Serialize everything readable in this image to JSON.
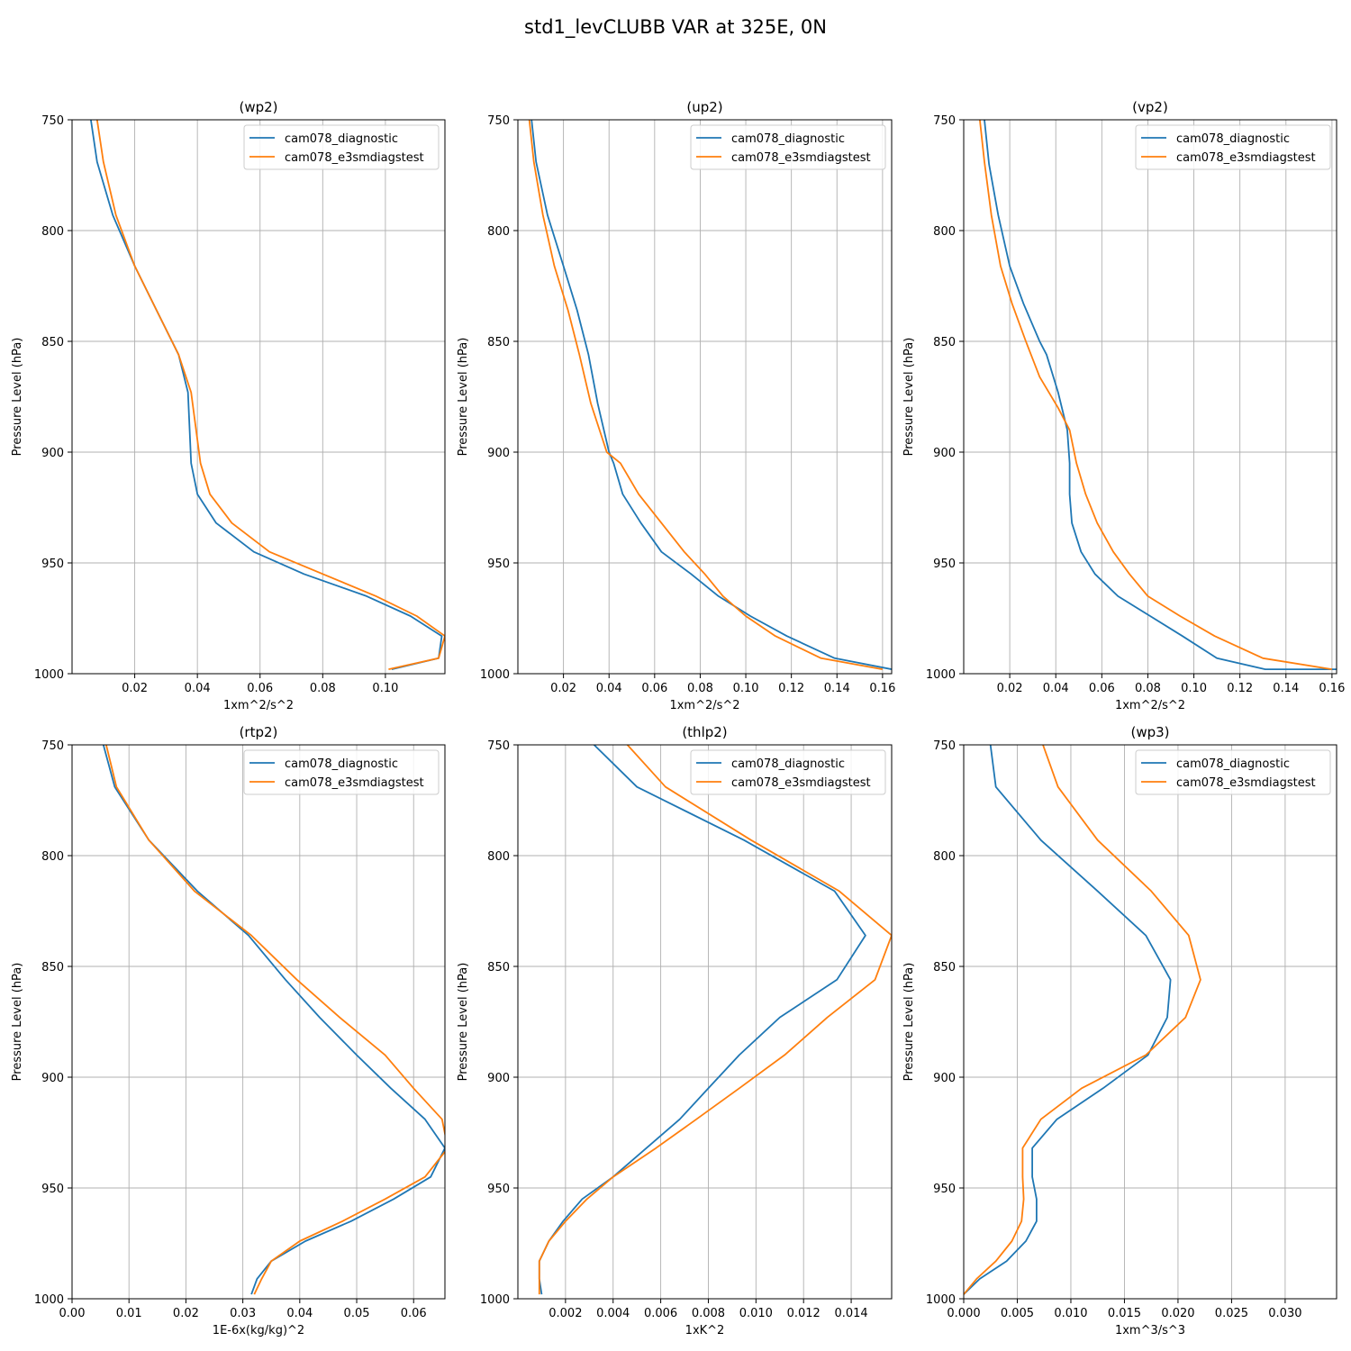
{
  "figure_title": "std1_levCLUBB VAR at 325E, 0N",
  "colors": {
    "series1": "#1f77b4",
    "series2": "#ff7f0e",
    "grid": "#b0b0b0"
  },
  "legend": [
    "cam078_diagnostic",
    "cam078_e3smdiagstest"
  ],
  "chart_data": [
    {
      "type": "line",
      "title": "(wp2)",
      "xlabel": "1xm^2/s^2",
      "ylabel": "Pressure Level (hPa)",
      "xlim": [
        0,
        0.119
      ],
      "ylim": [
        1000,
        750
      ],
      "xticks": [
        0.02,
        0.04,
        0.06,
        0.08,
        0.1
      ],
      "xtick_labels": [
        "0.02",
        "0.04",
        "0.06",
        "0.08",
        "0.10"
      ],
      "yticks": [
        750,
        800,
        850,
        900,
        950,
        1000
      ],
      "ytick_labels": [
        "750",
        "800",
        "850",
        "900",
        "950",
        "1000"
      ],
      "series": [
        {
          "name": "cam078_diagnostic",
          "x": [
            0.006,
            0.008,
            0.013,
            0.02,
            0.027,
            0.034,
            0.037,
            0.038,
            0.04,
            0.046,
            0.058,
            0.074,
            0.094,
            0.108,
            0.118,
            0.117,
            0.102
          ],
          "y": [
            750,
            769,
            793,
            816,
            836,
            856,
            873,
            905,
            919,
            932,
            945,
            955,
            965,
            974,
            983,
            993,
            998
          ]
        },
        {
          "name": "cam078_e3smdiagstest",
          "x": [
            0.008,
            0.01,
            0.014,
            0.02,
            0.027,
            0.034,
            0.038,
            0.041,
            0.044,
            0.051,
            0.063,
            0.08,
            0.097,
            0.11,
            0.119,
            0.117,
            0.101
          ],
          "y": [
            750,
            769,
            793,
            816,
            836,
            856,
            873,
            905,
            919,
            932,
            945,
            955,
            965,
            974,
            983,
            993,
            998
          ]
        }
      ]
    },
    {
      "type": "line",
      "title": "(up2)",
      "xlabel": "1xm^2/s^2",
      "ylabel": "Pressure Level (hPa)",
      "xlim": [
        0,
        0.164
      ],
      "ylim": [
        1000,
        750
      ],
      "xticks": [
        0.02,
        0.04,
        0.06,
        0.08,
        0.1,
        0.12,
        0.14,
        0.16
      ],
      "xtick_labels": [
        "0.02",
        "0.04",
        "0.06",
        "0.08",
        "0.10",
        "0.12",
        "0.14",
        "0.16"
      ],
      "yticks": [
        750,
        800,
        850,
        900,
        950,
        1000
      ],
      "ytick_labels": [
        "750",
        "800",
        "850",
        "900",
        "950",
        "1000"
      ],
      "series": [
        {
          "name": "cam078_diagnostic",
          "x": [
            0.006,
            0.008,
            0.013,
            0.02,
            0.026,
            0.031,
            0.035,
            0.04,
            0.042,
            0.046,
            0.054,
            0.063,
            0.076,
            0.088,
            0.102,
            0.118,
            0.139,
            0.164
          ],
          "y": [
            750,
            769,
            793,
            816,
            836,
            856,
            878,
            900,
            905,
            919,
            932,
            945,
            955,
            965,
            974,
            983,
            993,
            998
          ]
        },
        {
          "name": "cam078_e3smdiagstest",
          "x": [
            0.005,
            0.007,
            0.011,
            0.016,
            0.022,
            0.027,
            0.032,
            0.039,
            0.045,
            0.053,
            0.063,
            0.073,
            0.082,
            0.09,
            0.1,
            0.113,
            0.133,
            0.16
          ],
          "y": [
            750,
            769,
            793,
            816,
            836,
            856,
            878,
            900,
            905,
            919,
            932,
            945,
            955,
            965,
            974,
            983,
            993,
            998
          ]
        }
      ]
    },
    {
      "type": "line",
      "title": "(vp2)",
      "xlabel": "1xm^2/s^2",
      "ylabel": "Pressure Level (hPa)",
      "xlim": [
        0,
        0.162
      ],
      "ylim": [
        1000,
        750
      ],
      "xticks": [
        0.02,
        0.04,
        0.06,
        0.08,
        0.1,
        0.12,
        0.14,
        0.16
      ],
      "xtick_labels": [
        "0.02",
        "0.04",
        "0.06",
        "0.08",
        "0.10",
        "0.12",
        "0.14",
        "0.16"
      ],
      "yticks": [
        750,
        800,
        850,
        900,
        950,
        1000
      ],
      "ytick_labels": [
        "750",
        "800",
        "850",
        "900",
        "950",
        "1000"
      ],
      "series": [
        {
          "name": "cam078_diagnostic",
          "x": [
            0.009,
            0.011,
            0.015,
            0.02,
            0.026,
            0.033,
            0.036,
            0.041,
            0.045,
            0.046,
            0.046,
            0.047,
            0.051,
            0.057,
            0.067,
            0.081,
            0.095,
            0.11,
            0.131,
            0.162
          ],
          "y": [
            750,
            770,
            793,
            816,
            833,
            850,
            856,
            873,
            890,
            905,
            919,
            932,
            945,
            955,
            965,
            974,
            983,
            993,
            998,
            998
          ]
        },
        {
          "name": "cam078_e3smdiagstest",
          "x": [
            0.007,
            0.009,
            0.012,
            0.016,
            0.021,
            0.027,
            0.033,
            0.041,
            0.046,
            0.049,
            0.053,
            0.058,
            0.065,
            0.072,
            0.08,
            0.094,
            0.109,
            0.13,
            0.16
          ],
          "y": [
            750,
            769,
            793,
            816,
            833,
            850,
            866,
            880,
            890,
            905,
            919,
            932,
            945,
            955,
            965,
            974,
            983,
            993,
            998
          ]
        }
      ]
    },
    {
      "type": "line",
      "title": "(rtp2)",
      "xlabel": "1E-6x(kg/kg)^2",
      "ylabel": "Pressure Level (hPa)",
      "xlim": [
        0,
        0.0655
      ],
      "ylim": [
        1000,
        750
      ],
      "xticks": [
        0.0,
        0.01,
        0.02,
        0.03,
        0.04,
        0.05,
        0.06
      ],
      "xtick_labels": [
        "0.00",
        "0.01",
        "0.02",
        "0.03",
        "0.04",
        "0.05",
        "0.06"
      ],
      "yticks": [
        750,
        800,
        850,
        900,
        950,
        1000
      ],
      "ytick_labels": [
        "750",
        "800",
        "850",
        "900",
        "950",
        "1000"
      ],
      "series": [
        {
          "name": "cam078_diagnostic",
          "x": [
            0.0055,
            0.0075,
            0.0135,
            0.022,
            0.031,
            0.0375,
            0.0435,
            0.05,
            0.056,
            0.062,
            0.0655,
            0.063,
            0.0565,
            0.049,
            0.041,
            0.035,
            0.0325,
            0.0315
          ],
          "y": [
            750,
            769,
            793,
            816,
            836,
            856,
            873,
            890,
            905,
            919,
            932,
            945,
            955,
            965,
            974,
            983,
            991,
            998
          ]
        },
        {
          "name": "cam078_e3smdiagstest",
          "x": [
            0.006,
            0.0078,
            0.0135,
            0.0215,
            0.0315,
            0.0395,
            0.047,
            0.055,
            0.06,
            0.065,
            0.066,
            0.062,
            0.055,
            0.0475,
            0.04,
            0.035,
            0.0333,
            0.032
          ],
          "y": [
            750,
            769,
            793,
            816,
            836,
            856,
            873,
            890,
            905,
            919,
            932,
            945,
            955,
            965,
            974,
            983,
            991,
            998
          ]
        }
      ]
    },
    {
      "type": "line",
      "title": "(thlp2)",
      "xlabel": "1xK^2",
      "ylabel": "Pressure Level (hPa)",
      "xlim": [
        0,
        0.0157
      ],
      "ylim": [
        1000,
        750
      ],
      "xticks": [
        0.002,
        0.004,
        0.006,
        0.008,
        0.01,
        0.012,
        0.014
      ],
      "xtick_labels": [
        "0.002",
        "0.004",
        "0.006",
        "0.008",
        "0.010",
        "0.012",
        "0.014"
      ],
      "yticks": [
        750,
        800,
        850,
        900,
        950,
        1000
      ],
      "ytick_labels": [
        "750",
        "800",
        "850",
        "900",
        "950",
        "1000"
      ],
      "series": [
        {
          "name": "cam078_diagnostic",
          "x": [
            0.0032,
            0.005,
            0.0095,
            0.0133,
            0.0146,
            0.0134,
            0.011,
            0.0093,
            0.008,
            0.0068,
            0.0054,
            0.004,
            0.0027,
            0.0019,
            0.0013,
            0.0009,
            0.0009,
            0.001
          ],
          "y": [
            750,
            769,
            793,
            816,
            836,
            856,
            873,
            890,
            905,
            919,
            932,
            945,
            955,
            965,
            974,
            983,
            991,
            998
          ]
        },
        {
          "name": "cam078_e3smdiagstest",
          "x": [
            0.0046,
            0.0062,
            0.0098,
            0.0135,
            0.0157,
            0.015,
            0.013,
            0.0112,
            0.0093,
            0.0075,
            0.0058,
            0.004,
            0.0029,
            0.002,
            0.0013,
            0.0009,
            0.0009,
            0.0009
          ],
          "y": [
            750,
            769,
            793,
            816,
            836,
            856,
            873,
            890,
            905,
            919,
            932,
            945,
            955,
            965,
            974,
            983,
            991,
            998
          ]
        }
      ]
    },
    {
      "type": "line",
      "title": "(wp3)",
      "xlabel": "1xm^3/s^3",
      "ylabel": "Pressure Level (hPa)",
      "xlim": [
        0,
        0.0348
      ],
      "ylim": [
        1000,
        750
      ],
      "xticks": [
        0.0,
        0.005,
        0.01,
        0.015,
        0.02,
        0.025,
        0.03
      ],
      "xtick_labels": [
        "0.000",
        "0.005",
        "0.010",
        "0.015",
        "0.020",
        "0.025",
        "0.030"
      ],
      "yticks": [
        750,
        800,
        850,
        900,
        950,
        1000
      ],
      "ytick_labels": [
        "750",
        "800",
        "850",
        "900",
        "950",
        "1000"
      ],
      "series": [
        {
          "name": "cam078_diagnostic",
          "x": [
            0.0025,
            0.003,
            0.0072,
            0.0125,
            0.017,
            0.0193,
            0.019,
            0.0172,
            0.013,
            0.0087,
            0.0064,
            0.0064,
            0.0068,
            0.0068,
            0.0058,
            0.004,
            0.0015,
            0.0
          ],
          "y": [
            750,
            769,
            793,
            816,
            836,
            856,
            873,
            890,
            905,
            919,
            932,
            945,
            955,
            965,
            974,
            983,
            991,
            998
          ]
        },
        {
          "name": "cam078_e3smdiagstest",
          "x": [
            0.0074,
            0.0088,
            0.0125,
            0.0175,
            0.021,
            0.0221,
            0.0207,
            0.017,
            0.011,
            0.0072,
            0.0055,
            0.0055,
            0.0056,
            0.0054,
            0.0045,
            0.003,
            0.0012,
            0.0
          ],
          "y": [
            750,
            769,
            793,
            816,
            836,
            856,
            873,
            890,
            905,
            919,
            932,
            945,
            955,
            965,
            974,
            983,
            991,
            998
          ]
        }
      ]
    }
  ]
}
